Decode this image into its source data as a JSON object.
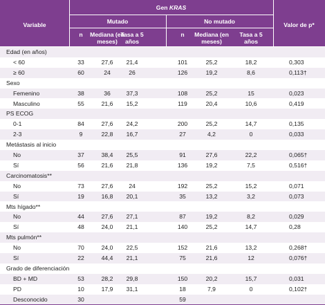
{
  "header": {
    "variable": "Variable",
    "gen": "Gen",
    "gene": "KRAS",
    "p_value": "Valor de p*",
    "groups": [
      "Mutado",
      "No mutado"
    ],
    "columns": [
      "n",
      "Mediana (en meses)",
      "Tasa a 5 años",
      "n",
      "Mediana (en meses)",
      "Tasa a 5 años"
    ]
  },
  "groups": [
    {
      "label": "Edad (en años)",
      "rows": [
        {
          "label": "< 60",
          "cells": [
            "33",
            "27,6",
            "21,4",
            "101",
            "25,2",
            "18,2",
            "0,303"
          ]
        },
        {
          "label": "≥ 60",
          "cells": [
            "60",
            "24",
            "26",
            "126",
            "19,2",
            "8,6",
            "0,113†"
          ]
        }
      ]
    },
    {
      "label": "Sexo",
      "rows": [
        {
          "label": "Femenino",
          "cells": [
            "38",
            "36",
            "37,3",
            "108",
            "25,2",
            "15",
            "0,023"
          ]
        },
        {
          "label": "Masculino",
          "cells": [
            "55",
            "21,6",
            "15,2",
            "119",
            "20,4",
            "10,6",
            "0,419"
          ]
        }
      ]
    },
    {
      "label": "PS ECOG",
      "rows": [
        {
          "label": "0-1",
          "cells": [
            "84",
            "27,6",
            "24,2",
            "200",
            "25,2",
            "14,7",
            "0,135"
          ]
        },
        {
          "label": "2-3",
          "cells": [
            "9",
            "22,8",
            "16,7",
            "27",
            "4,2",
            "0",
            "0,033"
          ]
        }
      ]
    },
    {
      "label": "Metástasis al inicio",
      "rows": [
        {
          "label": "No",
          "cells": [
            "37",
            "38,4",
            "25,5",
            "91",
            "27,6",
            "22,2",
            "0,065†"
          ]
        },
        {
          "label": "Sí",
          "cells": [
            "56",
            "21,6",
            "21,8",
            "136",
            "19,2",
            "7,5",
            "0,516†"
          ]
        }
      ]
    },
    {
      "label": "Carcinomatosis**",
      "rows": [
        {
          "label": "No",
          "cells": [
            "73",
            "27,6",
            "24",
            "192",
            "25,2",
            "15,2",
            "0,071"
          ]
        },
        {
          "label": "Sí",
          "cells": [
            "19",
            "16,8",
            "20,1",
            "35",
            "13,2",
            "3,2",
            "0,073"
          ]
        }
      ]
    },
    {
      "label": "Mts hígado**",
      "rows": [
        {
          "label": "No",
          "cells": [
            "44",
            "27,6",
            "27,1",
            "87",
            "19,2",
            "8,2",
            "0,029"
          ]
        },
        {
          "label": "Sí",
          "cells": [
            "48",
            "24,0",
            "21,1",
            "140",
            "25,2",
            "14,7",
            "0,28"
          ]
        }
      ]
    },
    {
      "label": "Mts pulmón**",
      "rows": [
        {
          "label": "No",
          "cells": [
            "70",
            "24,0",
            "22,5",
            "152",
            "21,6",
            "13,2",
            "0,268†"
          ]
        },
        {
          "label": "Sí",
          "cells": [
            "22",
            "44,4",
            "21,1",
            "75",
            "21,6",
            "12",
            "0,076†"
          ]
        }
      ]
    },
    {
      "label": "Grado de diferenciación",
      "rows": [
        {
          "label": "BD + MD",
          "cells": [
            "53",
            "28,2",
            "29,8",
            "150",
            "20,2",
            "15,7",
            "0,031"
          ]
        },
        {
          "label": "PD",
          "cells": [
            "10",
            "17,9",
            "31,1",
            "18",
            "7,9",
            "0",
            "0,102†"
          ]
        },
        {
          "label": "Desconocido",
          "cells": [
            "30",
            null,
            null,
            "59",
            null,
            null,
            null
          ]
        }
      ]
    }
  ]
}
